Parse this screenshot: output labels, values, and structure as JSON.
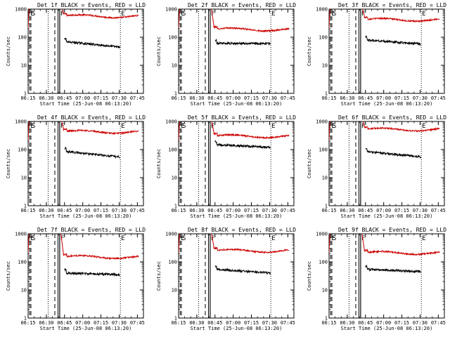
{
  "figure": {
    "panel_titles": [
      "Det 1f BLACK = Events, RED = LLD",
      "Det 2f BLACK = Events, RED = LLD",
      "Det 3f BLACK = Events, RED = LLD",
      "Det 4f BLACK = Events, RED = LLD",
      "Det 5f BLACK = Events, RED = LLD",
      "Det 6f BLACK = Events, RED = LLD",
      "Det 7f BLACK = Events, RED = LLD",
      "Det 8f BLACK = Events, RED = LLD",
      "Det 9f BLACK = Events, RED = LLD"
    ],
    "colors": {
      "events": "#000000",
      "lld": "#cc0000"
    }
  },
  "chart_data": {
    "type": "line",
    "ylabel": "Counts/sec",
    "xlabel": "Start Time (25-Jun-08 06:13:20)",
    "yscale": "log",
    "ylim": [
      1,
      1000
    ],
    "xlim_minutes": [
      375,
      470
    ],
    "y_ticks": [
      "1",
      "10",
      "100",
      "1000"
    ],
    "x_ticks": [
      "06:15",
      "06:30",
      "06:45",
      "07:00",
      "07:15",
      "07:30",
      "07:45"
    ],
    "x_tick_minutes": [
      375,
      390,
      405,
      420,
      435,
      450,
      465
    ],
    "markers": [
      {
        "label": "E",
        "minute": 376.3,
        "style": "dashed"
      },
      {
        "label": "S",
        "minute": 377.3,
        "style": "dashed"
      },
      {
        "label": "F",
        "minute": 401.0,
        "style": "solid"
      },
      {
        "label": "E",
        "minute": 451.0,
        "style": "dotted"
      }
    ],
    "vertical_lines": [
      {
        "minute": 391.5,
        "style": "dotted"
      },
      {
        "minute": 397.0,
        "style": "dashed"
      },
      {
        "minute": 399.6,
        "style": "solid"
      },
      {
        "minute": 401.0,
        "style": "solid"
      }
    ],
    "panels": [
      {
        "detector": "1f",
        "lld_level": 560,
        "events_level": 70,
        "events_end": 45
      },
      {
        "detector": "2f",
        "lld_level": 190,
        "events_level": 60,
        "events_end": 60
      },
      {
        "detector": "3f",
        "lld_level": 420,
        "events_level": 80,
        "events_end": 58
      },
      {
        "detector": "4f",
        "lld_level": 430,
        "events_level": 85,
        "events_end": 55
      },
      {
        "detector": "5f",
        "lld_level": 300,
        "events_level": 150,
        "events_end": 120
      },
      {
        "detector": "6f",
        "lld_level": 520,
        "events_level": 85,
        "events_end": 55
      },
      {
        "detector": "7f",
        "lld_level": 150,
        "events_level": 40,
        "events_end": 35
      },
      {
        "detector": "8f",
        "lld_level": 250,
        "events_level": 55,
        "events_end": 40
      },
      {
        "detector": "9f",
        "lld_level": 210,
        "events_level": 55,
        "events_end": 45
      }
    ]
  }
}
